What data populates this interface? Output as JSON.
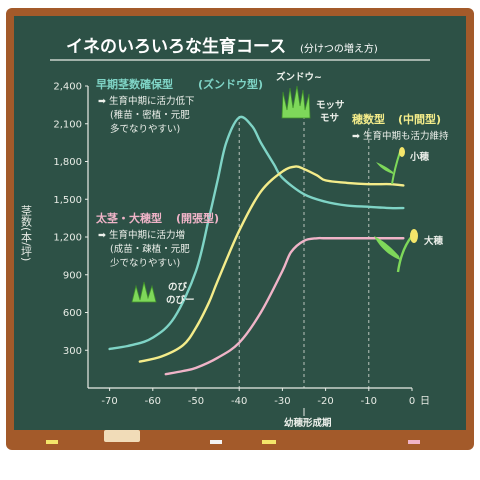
{
  "title": "イネのいろいろな生育コース",
  "subtitle": "(分けつの増え方)",
  "ylabel": "茎数(本/坪)",
  "xlabel_annotation": "幼穂形成期",
  "day_label": "日",
  "type_labels": {
    "t1_name": "早期茎数確保型",
    "t1_alias": "(ズンドウ型)",
    "t1_n1": "➡ 生育中期に活力低下",
    "t1_n2": "(稚苗・密植・元肥",
    "t1_n3": "多でなりやすい)",
    "t2_name": "穂数型",
    "t2_alias": "(中間型)",
    "t2_n1": "➡ 生育中期も活力維持",
    "t3_name": "太茎・大穂型",
    "t3_alias": "(開張型)",
    "t3_n1": "➡ 生育中期に活力増",
    "t3_n2": "(成苗・疎植・元肥",
    "t3_n3": "少でなりやすい)"
  },
  "illustration_labels": {
    "zundou": "ズンドウ~",
    "mossa1": "モッサ",
    "mossa2": "モサ",
    "kobo": "小穂",
    "daibo": "大穂",
    "nobi1": "のび",
    "nobi2": "のびー"
  },
  "colors": {
    "board": "#2d5146",
    "frame": "#a35a2a",
    "teal": "#7fd4c6",
    "yellow": "#f4ec8a",
    "pink": "#f0b4c8",
    "axis": "#e8ece6",
    "grass": "#7ed85a"
  },
  "chart_data": {
    "type": "line",
    "title": "イネのいろいろな生育コース",
    "subtitle": "(分けつの増え方)",
    "ylabel": "茎数(本/坪)",
    "xlabel": "日",
    "xlim": [
      -75,
      0
    ],
    "ylim": [
      0,
      2400
    ],
    "x_ticks": [
      -70,
      -60,
      -50,
      -40,
      -30,
      -20,
      -10,
      0
    ],
    "x_tick_labels": [
      "-70",
      "-60",
      "-50",
      "-40",
      "-30",
      "-20",
      "-10",
      "0"
    ],
    "y_ticks": [
      300,
      600,
      900,
      1200,
      1500,
      1800,
      2100,
      2400
    ],
    "y_tick_labels": [
      "300",
      "600",
      "900",
      "1,200",
      "1,500",
      "1,800",
      "2,100",
      "2,400"
    ],
    "guides_x": [
      -40,
      -25,
      -10
    ],
    "annotation": {
      "x": -25,
      "text": "幼穂形成期"
    },
    "series": [
      {
        "name": "早期茎数確保型",
        "color": "#7fd4c6",
        "x": [
          -70,
          -65,
          -60,
          -55,
          -50,
          -47,
          -45,
          -43,
          -40,
          -37,
          -35,
          -32,
          -30,
          -25,
          -20,
          -15,
          -10,
          -5,
          -2
        ],
        "y": [
          310,
          340,
          400,
          560,
          930,
          1350,
          1650,
          1950,
          2150,
          2080,
          1950,
          1780,
          1670,
          1540,
          1480,
          1450,
          1440,
          1430,
          1430
        ]
      },
      {
        "name": "穂数型",
        "color": "#f4ec8a",
        "x": [
          -63,
          -58,
          -53,
          -50,
          -47,
          -45,
          -40,
          -35,
          -30,
          -27,
          -25,
          -22,
          -20,
          -15,
          -10,
          -5,
          -2
        ],
        "y": [
          210,
          250,
          340,
          480,
          680,
          850,
          1250,
          1560,
          1720,
          1760,
          1740,
          1690,
          1650,
          1630,
          1620,
          1620,
          1610
        ]
      },
      {
        "name": "太茎・大穂型",
        "color": "#f0b4c8",
        "x": [
          -57,
          -53,
          -50,
          -45,
          -40,
          -35,
          -30,
          -28,
          -25,
          -22,
          -20,
          -15,
          -10,
          -5,
          -2
        ],
        "y": [
          110,
          135,
          160,
          240,
          360,
          600,
          930,
          1080,
          1170,
          1190,
          1190,
          1190,
          1190,
          1190,
          1190
        ]
      }
    ]
  }
}
